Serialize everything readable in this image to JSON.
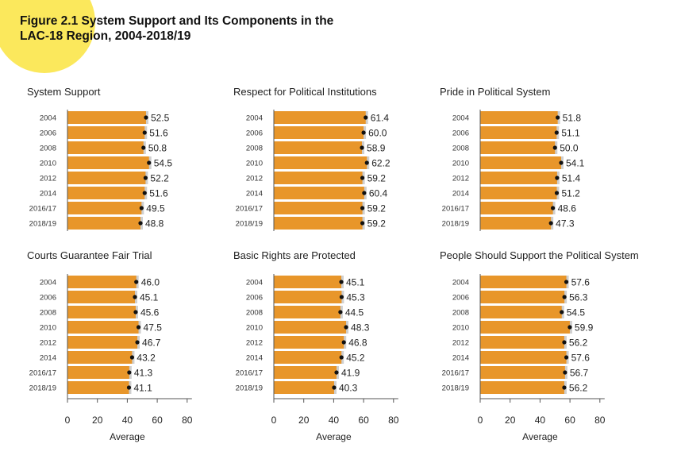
{
  "figure": {
    "title_line1": "Figure 2.1 System Support and Its Components in the",
    "title_line2": "LAC-18 Region, 2004-2018/19"
  },
  "chart_data": [
    {
      "type": "bar",
      "title": "System Support",
      "categories": [
        "2004",
        "2006",
        "2008",
        "2010",
        "2012",
        "2014",
        "2016/17",
        "2018/19"
      ],
      "values": [
        52.5,
        51.6,
        50.8,
        54.5,
        52.2,
        51.6,
        49.5,
        48.8
      ],
      "xlim": [
        0,
        80
      ],
      "xticks": [
        0,
        20,
        40,
        60,
        80
      ],
      "xlabel": "",
      "bar_color": "#e8962a"
    },
    {
      "type": "bar",
      "title": "Respect for Political Institutions",
      "categories": [
        "2004",
        "2006",
        "2008",
        "2010",
        "2012",
        "2014",
        "2016/17",
        "2018/19"
      ],
      "values": [
        61.4,
        60.0,
        58.9,
        62.2,
        59.2,
        60.4,
        59.2,
        59.2
      ],
      "xlim": [
        0,
        80
      ],
      "xticks": [
        0,
        20,
        40,
        60,
        80
      ],
      "xlabel": "",
      "bar_color": "#e8962a"
    },
    {
      "type": "bar",
      "title": "Pride in Political System",
      "categories": [
        "2004",
        "2006",
        "2008",
        "2010",
        "2012",
        "2014",
        "2016/17",
        "2018/19"
      ],
      "values": [
        51.8,
        51.1,
        50.0,
        54.1,
        51.4,
        51.2,
        48.6,
        47.3
      ],
      "xlim": [
        0,
        80
      ],
      "xticks": [
        0,
        20,
        40,
        60,
        80
      ],
      "xlabel": "",
      "bar_color": "#e8962a"
    },
    {
      "type": "bar",
      "title": "Courts Guarantee Fair Trial",
      "categories": [
        "2004",
        "2006",
        "2008",
        "2010",
        "2012",
        "2014",
        "2016/17",
        "2018/19"
      ],
      "values": [
        46.0,
        45.1,
        45.6,
        47.5,
        46.7,
        43.2,
        41.3,
        41.1
      ],
      "xlim": [
        0,
        80
      ],
      "xticks": [
        0,
        20,
        40,
        60,
        80
      ],
      "xlabel": "Average",
      "bar_color": "#e8962a"
    },
    {
      "type": "bar",
      "title": "Basic Rights are Protected",
      "categories": [
        "2004",
        "2006",
        "2008",
        "2010",
        "2012",
        "2014",
        "2016/17",
        "2018/19"
      ],
      "values": [
        45.1,
        45.3,
        44.5,
        48.3,
        46.8,
        45.2,
        41.9,
        40.3
      ],
      "xlim": [
        0,
        80
      ],
      "xticks": [
        0,
        20,
        40,
        60,
        80
      ],
      "xlabel": "Average",
      "bar_color": "#e8962a"
    },
    {
      "type": "bar",
      "title": "People Should Support the Political System",
      "categories": [
        "2004",
        "2006",
        "2008",
        "2010",
        "2012",
        "2014",
        "2016/17",
        "2018/19"
      ],
      "values": [
        57.6,
        56.3,
        54.5,
        59.9,
        56.2,
        57.6,
        56.7,
        56.2
      ],
      "xlim": [
        0,
        80
      ],
      "xticks": [
        0,
        20,
        40,
        60,
        80
      ],
      "xlabel": "Average",
      "bar_color": "#e8962a"
    }
  ]
}
